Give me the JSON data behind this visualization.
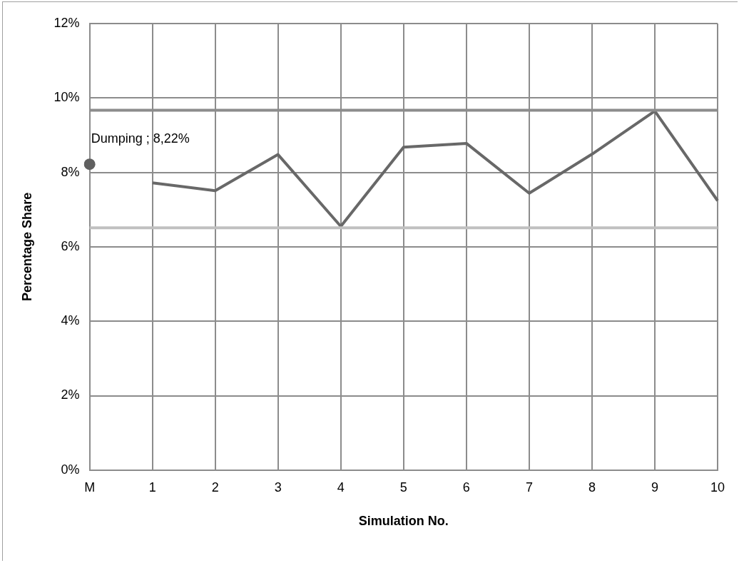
{
  "chart_data": {
    "type": "line",
    "xlabel": "Simulation No.",
    "ylabel": "Percentage Share",
    "categories": [
      "M",
      "1",
      "2",
      "3",
      "4",
      "5",
      "6",
      "7",
      "8",
      "9",
      "10"
    ],
    "series": [
      {
        "type": "scatter",
        "color": "#606060",
        "marker": "circle",
        "values": [
          8.22,
          null,
          null,
          null,
          null,
          null,
          null,
          null,
          null,
          null,
          null
        ],
        "value_labels": [
          "Dumping ; 8,22%",
          null,
          null,
          null,
          null,
          null,
          null,
          null,
          null,
          null,
          null
        ]
      },
      {
        "type": "line",
        "color": "#686868",
        "marker": "none",
        "values": [
          null,
          7.72,
          7.51,
          8.48,
          6.55,
          8.68,
          8.78,
          7.44,
          8.49,
          9.65,
          7.24
        ]
      }
    ],
    "ref_lines": [
      {
        "axis": "y",
        "value": 9.67,
        "color": "#8c8c8c"
      },
      {
        "axis": "y",
        "value": 6.51,
        "color": "#c0c0c0"
      }
    ],
    "ylim": [
      0,
      12
    ],
    "yticks": [
      {
        "value": 0,
        "label": "0%"
      },
      {
        "value": 2,
        "label": "2%"
      },
      {
        "value": 4,
        "label": "4%"
      },
      {
        "value": 6,
        "label": "6%"
      },
      {
        "value": 8,
        "label": "8%"
      },
      {
        "value": 10,
        "label": "10%"
      },
      {
        "value": 12,
        "label": "12%"
      }
    ],
    "grid": true,
    "legend": false
  }
}
